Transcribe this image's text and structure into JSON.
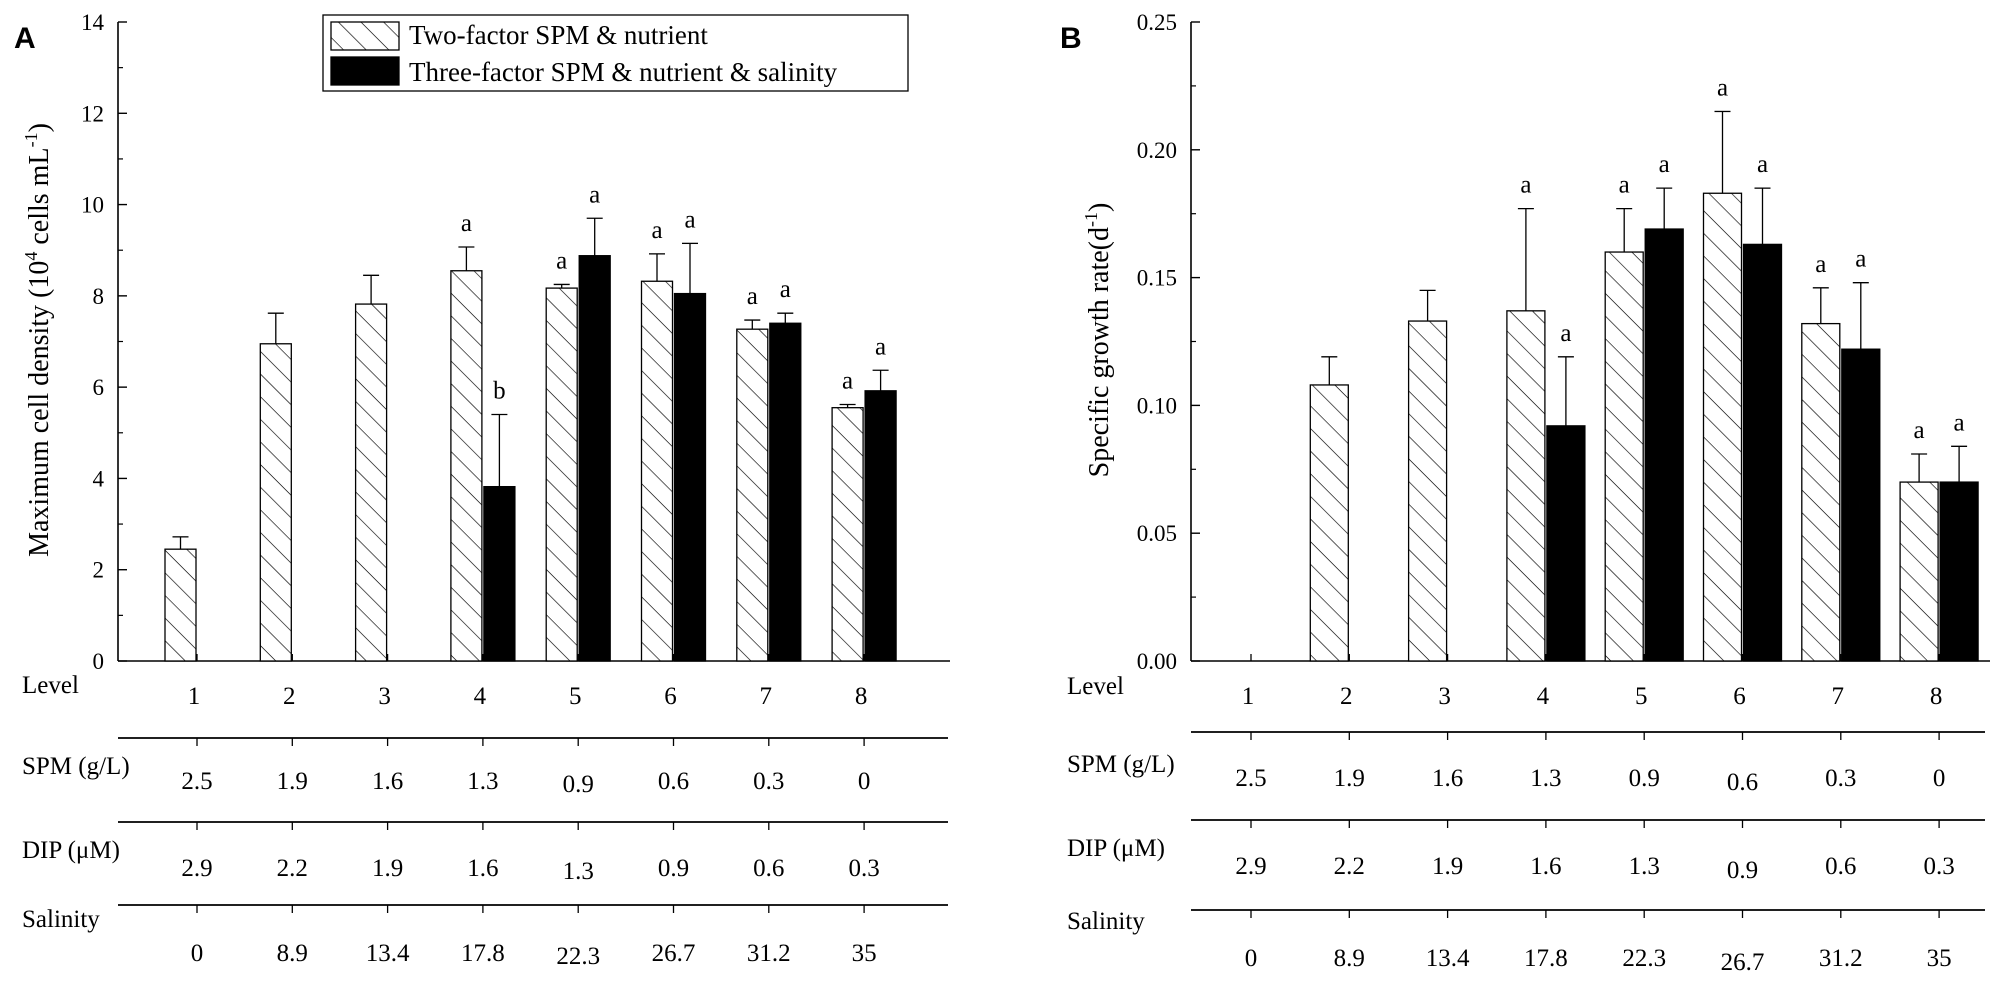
{
  "legend": {
    "two_factor": "Two-factor SPM & nutrient",
    "three_factor": "Three-factor SPM & nutrient & salinity"
  },
  "chart_data": [
    {
      "panel": "A",
      "type": "bar",
      "ylabel": "Maximum cell density (10^4 cells mL^-1)",
      "ylabel_parts": {
        "base": "Maximum cell density (10",
        "exp1": "4",
        "mid": " cells mL",
        "exp2": "-1",
        "end": ")"
      },
      "ylim": [
        0,
        14
      ],
      "yticks": [
        0,
        2,
        4,
        6,
        8,
        10,
        12,
        14
      ],
      "categories": [
        "1",
        "2",
        "3",
        "4",
        "5",
        "6",
        "7",
        "8"
      ],
      "series": [
        {
          "name": "Two-factor SPM & nutrient",
          "values": [
            2.45,
            6.95,
            7.82,
            8.55,
            8.17,
            8.32,
            7.27,
            5.55
          ],
          "errors": [
            0.27,
            0.67,
            0.63,
            0.52,
            0.08,
            0.6,
            0.2,
            0.07
          ],
          "labels": [
            "",
            "",
            "",
            "a",
            "a",
            "a",
            "a",
            "a"
          ]
        },
        {
          "name": "Three-factor SPM & nutrient & salinity",
          "values": [
            null,
            null,
            null,
            3.82,
            8.88,
            8.05,
            7.4,
            5.92
          ],
          "errors": [
            null,
            null,
            null,
            1.58,
            0.82,
            1.1,
            0.22,
            0.45
          ],
          "labels": [
            "",
            "",
            "",
            "b",
            "a",
            "a",
            "a",
            "a"
          ]
        }
      ]
    },
    {
      "panel": "B",
      "type": "bar",
      "ylabel": "Specific growth rate(d^-1)",
      "ylabel_parts": {
        "base": "Specific growth rate(d",
        "exp": "-1",
        "end": ")"
      },
      "ylim": [
        0,
        0.25
      ],
      "yticks": [
        "0.00",
        "0.05",
        "0.10",
        "0.15",
        "0.20",
        "0.25"
      ],
      "categories": [
        "1",
        "2",
        "3",
        "4",
        "5",
        "6",
        "7",
        "8"
      ],
      "series": [
        {
          "name": "Two-factor SPM & nutrient",
          "values": [
            null,
            0.108,
            0.133,
            0.137,
            0.16,
            0.183,
            0.132,
            0.07
          ],
          "errors": [
            null,
            0.011,
            0.012,
            0.04,
            0.017,
            0.032,
            0.014,
            0.011
          ],
          "labels": [
            "",
            "",
            "",
            "a",
            "a",
            "a",
            "a",
            "a"
          ]
        },
        {
          "name": "Three-factor SPM & nutrient & salinity",
          "values": [
            null,
            null,
            null,
            0.092,
            0.169,
            0.163,
            0.122,
            0.07
          ],
          "errors": [
            null,
            null,
            null,
            0.027,
            0.016,
            0.022,
            0.026,
            0.014
          ],
          "labels": [
            "",
            "",
            "",
            "a",
            "a",
            "a",
            "a",
            "a"
          ]
        }
      ]
    }
  ],
  "table": {
    "rows": [
      {
        "label": "Level",
        "values": [
          "1",
          "2",
          "3",
          "4",
          "5",
          "6",
          "7",
          "8"
        ]
      },
      {
        "label": "SPM (g/L)",
        "values": [
          "2.5",
          "1.9",
          "1.6",
          "1.3",
          "0.9",
          "0.6",
          "0.3",
          "0"
        ]
      },
      {
        "label": "DIP (μM)",
        "values": [
          "2.9",
          "2.2",
          "1.9",
          "1.6",
          "1.3",
          "0.9",
          "0.6",
          "0.3"
        ]
      },
      {
        "label": "Salinity",
        "values": [
          "0",
          "8.9",
          "13.4",
          "17.8",
          "22.3",
          "26.7",
          "31.2",
          "35"
        ]
      }
    ]
  }
}
